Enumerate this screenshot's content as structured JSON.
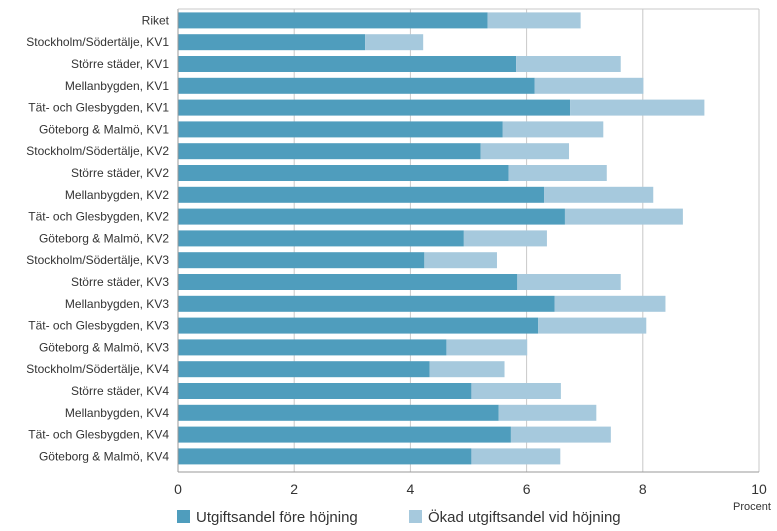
{
  "chart_data": {
    "type": "bar",
    "orientation": "horizontal",
    "stacked": true,
    "x_unit_label": "Procent",
    "xlim": [
      0,
      10
    ],
    "x_ticks": [
      0,
      2,
      4,
      6,
      8,
      10
    ],
    "grid": "vertical",
    "legend_position": "bottom",
    "colors": {
      "base": "#4f9dbd",
      "increase": "#a6c9dd",
      "grid": "#c8c8c8",
      "axis": "#999999"
    },
    "categories": [
      "Riket",
      "Stockholm/Södertälje, KV1",
      "Större städer, KV1",
      "Mellanbygden, KV1",
      "Tät- och Glesbygden, KV1",
      "Göteborg & Malmö, KV1",
      "Stockholm/Södertälje, KV2",
      "Större städer, KV2",
      "Mellanbygden, KV2",
      "Tät- och Glesbygden, KV2",
      "Göteborg & Malmö, KV2",
      "Stockholm/Södertälje, KV3",
      "Större städer, KV3",
      "Mellanbygden, KV3",
      "Tät- och Glesbygden, KV3",
      "Göteborg & Malmö, KV3",
      "Stockholm/Södertälje, KV4",
      "Större städer, KV4",
      "Mellanbygden, KV4",
      "Tät- och Glesbygden, KV4",
      "Göteborg & Malmö, KV4"
    ],
    "series": [
      {
        "name": "Utgiftsandel före höjning",
        "values": [
          5.33,
          3.22,
          5.82,
          6.14,
          6.75,
          5.59,
          5.21,
          5.69,
          6.3,
          6.66,
          4.92,
          4.24,
          5.84,
          6.48,
          6.2,
          4.62,
          4.33,
          5.05,
          5.52,
          5.73,
          5.05
        ]
      },
      {
        "name": "Ökad utgiftsandel vid höjning",
        "values": [
          1.6,
          1.0,
          1.8,
          1.87,
          2.31,
          1.73,
          1.52,
          1.69,
          1.88,
          2.03,
          1.43,
          1.25,
          1.78,
          1.91,
          1.86,
          1.39,
          1.29,
          1.54,
          1.68,
          1.72,
          1.53
        ]
      }
    ]
  }
}
